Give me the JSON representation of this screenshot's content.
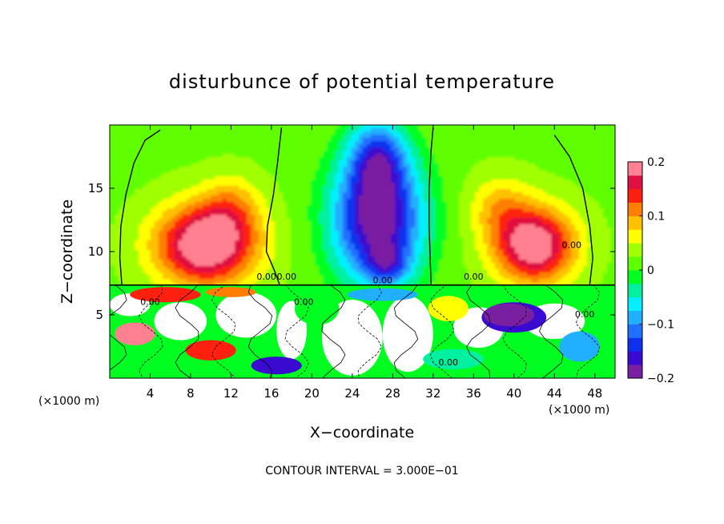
{
  "chart_data": {
    "type": "heatmap",
    "title": "disturbunce of potential temperature",
    "xlabel": "X−coordinate",
    "ylabel": "Z−coordinate",
    "x_unit_left": "(×1000 m)",
    "x_unit_right": "(×1000 m)",
    "footer": "CONTOUR INTERVAL = 3.000E−01",
    "xlim": [
      0,
      50
    ],
    "ylim": [
      0,
      20
    ],
    "xticks": [
      4,
      8,
      12,
      16,
      20,
      24,
      28,
      32,
      36,
      40,
      44,
      48
    ],
    "xtick_labels": [
      "4",
      "8",
      "12",
      "16",
      "20",
      "24",
      "28",
      "32",
      "36",
      "40",
      "44",
      "48"
    ],
    "yticks": [
      5,
      10,
      15
    ],
    "ytick_labels": [
      "5",
      "10",
      "15"
    ],
    "colorbar": {
      "range": [
        -0.2,
        0.2
      ],
      "ticks": [
        0.2,
        0.1,
        0,
        -0.1,
        -0.2
      ],
      "tick_labels": [
        "0.2",
        "0.1",
        "0",
        "−0.1",
        "−0.2"
      ],
      "colors": [
        "#7a1fa2",
        "#3a0ad0",
        "#1030f0",
        "#2070ff",
        "#20b0ff",
        "#00f0ff",
        "#00f0a0",
        "#00ff20",
        "#60ff00",
        "#a0ff00",
        "#ffff00",
        "#ffc000",
        "#ff8000",
        "#ff2010",
        "#e01040",
        "#ff8090"
      ]
    },
    "contour_labels": [
      "0.00",
      "0.00",
      "0.00",
      "0.00",
      "0.00",
      "0.00",
      "0.00",
      "0.00",
      "0.00"
    ],
    "contour_interval": 0.3,
    "grid": false,
    "legend": "right colorbar",
    "upper_layer": {
      "z_bottom": 7.4,
      "background": 0.02,
      "blobs": [
        {
          "x": 9.5,
          "z": 10.5,
          "sx": 5.0,
          "sz": 3.2,
          "v": 0.2
        },
        {
          "x": 12.0,
          "z": 13.5,
          "sx": 3.0,
          "sz": 2.5,
          "v": 0.06
        },
        {
          "x": 42.0,
          "z": 10.5,
          "sx": 4.0,
          "sz": 3.0,
          "v": 0.19
        },
        {
          "x": 38.5,
          "z": 13.5,
          "sx": 3.0,
          "sz": 2.5,
          "v": 0.06
        },
        {
          "x": 26.5,
          "z": 12.5,
          "sx": 4.5,
          "sz": 5.0,
          "v": -0.22
        },
        {
          "x": 26.5,
          "z": 17.5,
          "sx": 2.8,
          "sz": 3.0,
          "v": -0.12
        },
        {
          "x": 27.5,
          "z": 9.0,
          "sx": 2.0,
          "sz": 1.5,
          "v": -0.08
        }
      ],
      "contours": [
        [
          [
            16.8,
            7.4
          ],
          [
            16.3,
            8.5
          ],
          [
            15.5,
            10.0
          ],
          [
            15.6,
            12.0
          ],
          [
            16.2,
            14.5
          ],
          [
            16.6,
            17.0
          ],
          [
            17.0,
            19.8
          ]
        ],
        [
          [
            31.8,
            7.4
          ],
          [
            31.7,
            9.5
          ],
          [
            31.6,
            12.0
          ],
          [
            31.6,
            15.0
          ],
          [
            31.8,
            18.0
          ],
          [
            32.0,
            19.8
          ]
        ],
        [
          [
            1.2,
            7.4
          ],
          [
            1.0,
            9.5
          ],
          [
            1.1,
            12.0
          ],
          [
            1.6,
            14.5
          ],
          [
            2.4,
            17.0
          ],
          [
            3.5,
            18.8
          ],
          [
            5.0,
            19.6
          ]
        ],
        [
          [
            47.5,
            7.4
          ],
          [
            47.8,
            9.5
          ],
          [
            47.5,
            12.0
          ],
          [
            46.8,
            15.0
          ],
          [
            45.5,
            17.5
          ],
          [
            44.0,
            19.2
          ]
        ]
      ]
    },
    "lower_layer": {
      "z_top": 7.4,
      "patches": [
        {
          "x": 2.0,
          "z": 5.8,
          "rx": 2.0,
          "rz": 0.9,
          "c": "#ffffff"
        },
        {
          "x": 7.0,
          "z": 4.5,
          "rx": 2.6,
          "rz": 1.5,
          "c": "#ffffff"
        },
        {
          "x": 13.5,
          "z": 5.0,
          "rx": 3.0,
          "rz": 1.8,
          "c": "#ffffff"
        },
        {
          "x": 18.0,
          "z": 3.8,
          "rx": 1.5,
          "rz": 2.3,
          "c": "#ffffff"
        },
        {
          "x": 24.0,
          "z": 3.2,
          "rx": 3.0,
          "rz": 3.0,
          "c": "#ffffff"
        },
        {
          "x": 29.5,
          "z": 3.5,
          "rx": 2.5,
          "rz": 3.0,
          "c": "#ffffff"
        },
        {
          "x": 36.5,
          "z": 4.0,
          "rx": 2.5,
          "rz": 1.6,
          "c": "#ffffff"
        },
        {
          "x": 44.0,
          "z": 4.5,
          "rx": 3.0,
          "rz": 1.4,
          "c": "#ffffff"
        },
        {
          "x": 40.0,
          "z": 4.8,
          "rx": 3.2,
          "rz": 1.2,
          "c": "#3a0ad0"
        },
        {
          "x": 39.5,
          "z": 5.0,
          "rx": 2.5,
          "rz": 0.9,
          "c": "#7a1fa2"
        },
        {
          "x": 5.5,
          "z": 6.6,
          "rx": 3.5,
          "rz": 0.6,
          "c": "#ff2010"
        },
        {
          "x": 2.5,
          "z": 3.5,
          "rx": 2.0,
          "rz": 0.9,
          "c": "#ff8090"
        },
        {
          "x": 10.0,
          "z": 2.2,
          "rx": 2.5,
          "rz": 0.8,
          "c": "#ff2010"
        },
        {
          "x": 20.5,
          "z": 5.5,
          "rx": 2.2,
          "rz": 1.3,
          "c": "#00ff20"
        },
        {
          "x": 33.5,
          "z": 5.5,
          "rx": 2.0,
          "rz": 1.0,
          "c": "#ffff00"
        },
        {
          "x": 34.0,
          "z": 1.5,
          "rx": 3.0,
          "rz": 0.8,
          "c": "#00f0a0"
        },
        {
          "x": 16.5,
          "z": 1.0,
          "rx": 2.5,
          "rz": 0.7,
          "c": "#3a0ad0"
        },
        {
          "x": 46.5,
          "z": 2.5,
          "rx": 2.0,
          "rz": 1.2,
          "c": "#20b0ff"
        },
        {
          "x": 27.0,
          "z": 6.6,
          "rx": 3.5,
          "rz": 0.5,
          "c": "#20b0ff"
        },
        {
          "x": 12.0,
          "z": 6.8,
          "rx": 2.5,
          "rz": 0.4,
          "c": "#ff8000"
        }
      ]
    }
  }
}
